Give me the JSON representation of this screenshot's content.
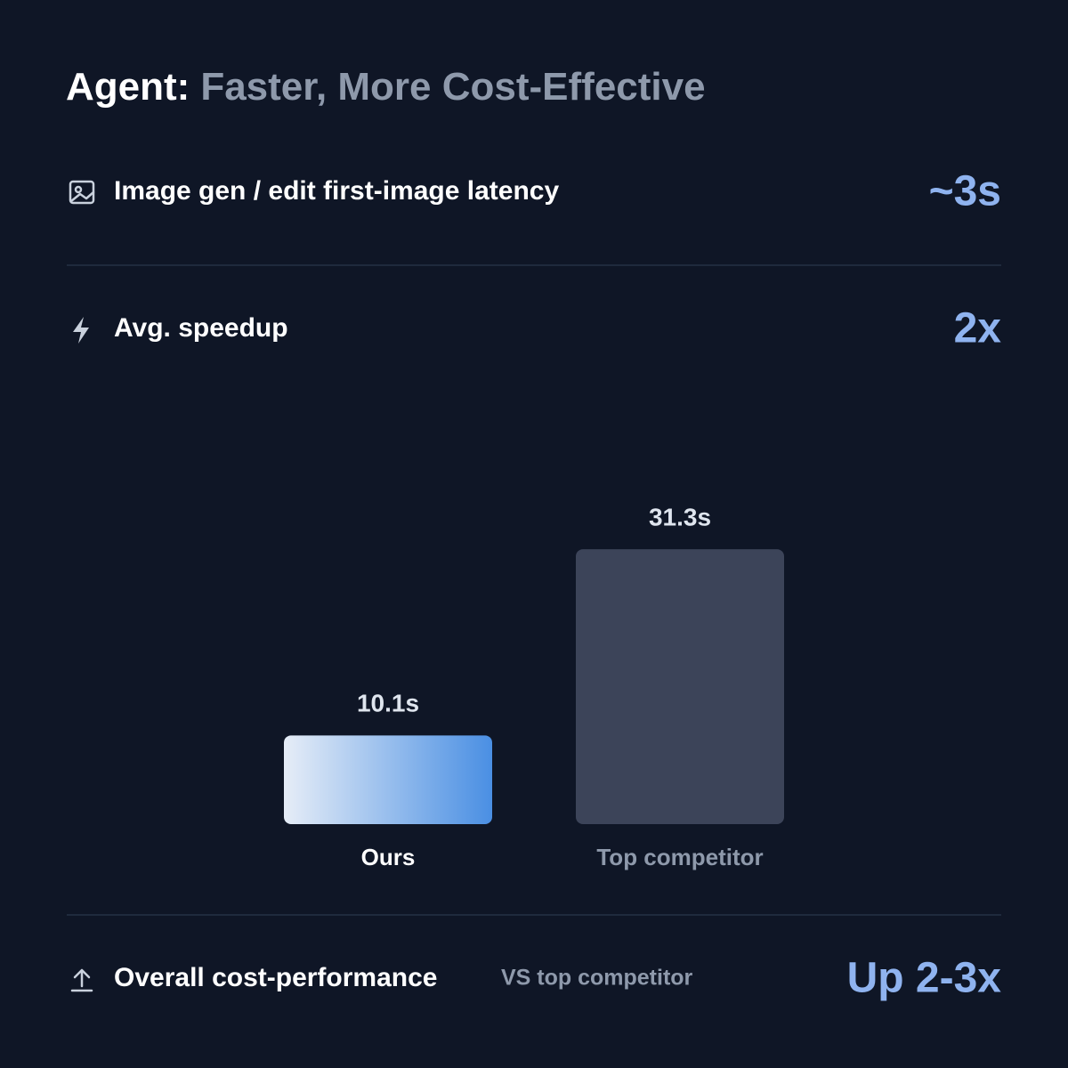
{
  "title": {
    "lead": "Agent:",
    "rest": "Faster, More Cost-Effective"
  },
  "metrics": [
    {
      "label": "Image gen / edit first-image latency",
      "value": "~3s"
    },
    {
      "label": "Avg. speedup",
      "value": "2x"
    },
    {
      "label": "Overall cost-performance",
      "note": "VS top competitor",
      "value": "Up 2-3x"
    }
  ],
  "chart_data": {
    "type": "bar",
    "categories": [
      "Ours",
      "Top competitor"
    ],
    "values": [
      10.1,
      31.3
    ],
    "value_labels": [
      "10.1s",
      "31.3s"
    ],
    "colors": [
      "#4a8fe3",
      "#3c4459"
    ]
  }
}
